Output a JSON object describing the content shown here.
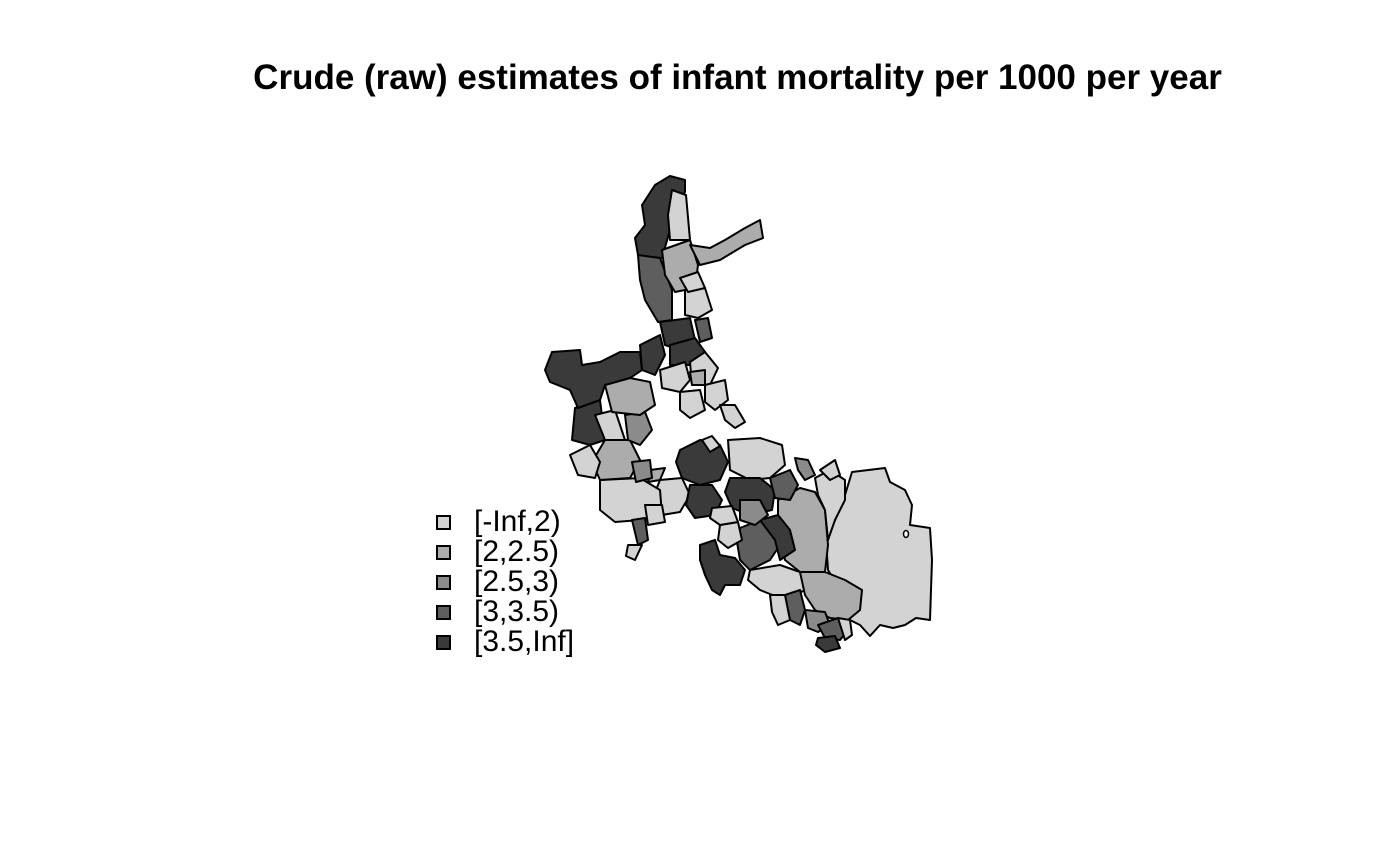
{
  "title": "Crude (raw) estimates of infant mortality per 1000 per year",
  "legend": {
    "position": "bottom-left",
    "items": [
      {
        "label": "[-Inf,2)",
        "color": "#d3d3d3",
        "class": 0
      },
      {
        "label": "[2,2.5)",
        "color": "#acacac",
        "class": 1
      },
      {
        "label": "[2.5,3)",
        "color": "#8b8b8b",
        "class": 2
      },
      {
        "label": "[3,3.5)",
        "color": "#5e5e5e",
        "class": 3
      },
      {
        "label": "[3.5,Inf]",
        "color": "#3a3a3a",
        "class": 4
      }
    ]
  }
}
